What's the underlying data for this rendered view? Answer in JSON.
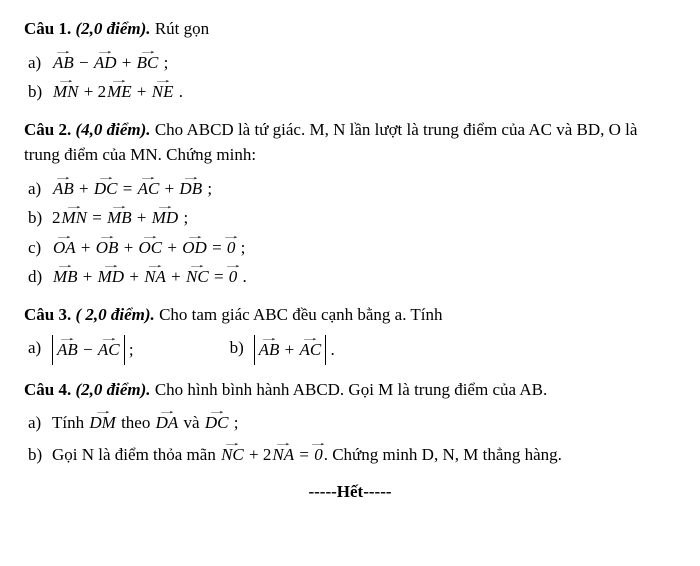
{
  "q1": {
    "head_bold": "Câu 1.",
    "head_italic": " (2,0 điểm).",
    "head_rest": " Rút gọn",
    "a_label": "a)",
    "a_v1": "AB",
    "a_v2": "AD",
    "a_v3": "BC",
    "a_end": " ;",
    "b_label": "b)",
    "b_v1": "MN",
    "b_v2": "ME",
    "b_v3": "NE",
    "b_coef": " + 2",
    "b_plus": " + ",
    "b_minus": " − ",
    "b_end": " ."
  },
  "q2": {
    "head_bold": "Câu 2.",
    "head_italic": " (4,0 điểm).",
    "head_rest": " Cho ABCD là tứ giác. M, N lần lượt là trung điểm của AC và BD, O là trung điểm của MN. Chứng minh:",
    "a_label": "a)",
    "a_v1": "AB",
    "a_v2": "DC",
    "a_v3": "AC",
    "a_v4": "DB",
    "a_eq": " = ",
    "a_plus": " + ",
    "a_end": " ;",
    "b_label": "b)",
    "b_coef": "2",
    "b_v1": "MN",
    "b_v2": "MB",
    "b_v3": "MD",
    "b_eq": " = ",
    "b_plus": " + ",
    "b_end": " ;",
    "c_label": "c)",
    "c_v1": "OA",
    "c_v2": "OB",
    "c_v3": "OC",
    "c_v4": "OD",
    "c_zero": "0",
    "c_plus": " + ",
    "c_eq": " = ",
    "c_end": " ;",
    "d_label": "d)",
    "d_v1": "MB",
    "d_v2": "MD",
    "d_v3": "NA",
    "d_v4": "NC",
    "d_zero": "0",
    "d_plus": " + ",
    "d_eq": " = ",
    "d_end": " ."
  },
  "q3": {
    "head_bold": "Câu 3.",
    "head_italic": " ( 2,0 điểm).",
    "head_rest": " Cho tam giác ABC đều cạnh bằng a. Tính",
    "a_label": "a)",
    "a_v1": "AB",
    "a_v2": "AC",
    "a_minus": " − ",
    "a_end": " ;",
    "b_label": "b)",
    "b_v1": "AB",
    "b_v2": "AC",
    "b_plus": " + ",
    "b_end": " ."
  },
  "q4": {
    "head_bold": "Câu 4.",
    "head_italic": " (2,0 điểm).",
    "head_rest": " Cho hình bình hành ABCD. Gọi M là trung điểm của AB.",
    "a_label": "a)",
    "a_pre": "Tính ",
    "a_v1": "DM",
    "a_mid": " theo ",
    "a_v2": "DA",
    "a_and": " và ",
    "a_v3": "DC",
    "a_end": " ;",
    "b_label": "b)",
    "b_pre": "Gọi N là điểm thỏa mãn ",
    "b_v1": "NC",
    "b_coef": " + 2",
    "b_v2": "NA",
    "b_eq": " = ",
    "b_zero": "0",
    "b_post": ". Chứng minh D, N, M thẳng hàng."
  },
  "end": "-----Hết-----"
}
